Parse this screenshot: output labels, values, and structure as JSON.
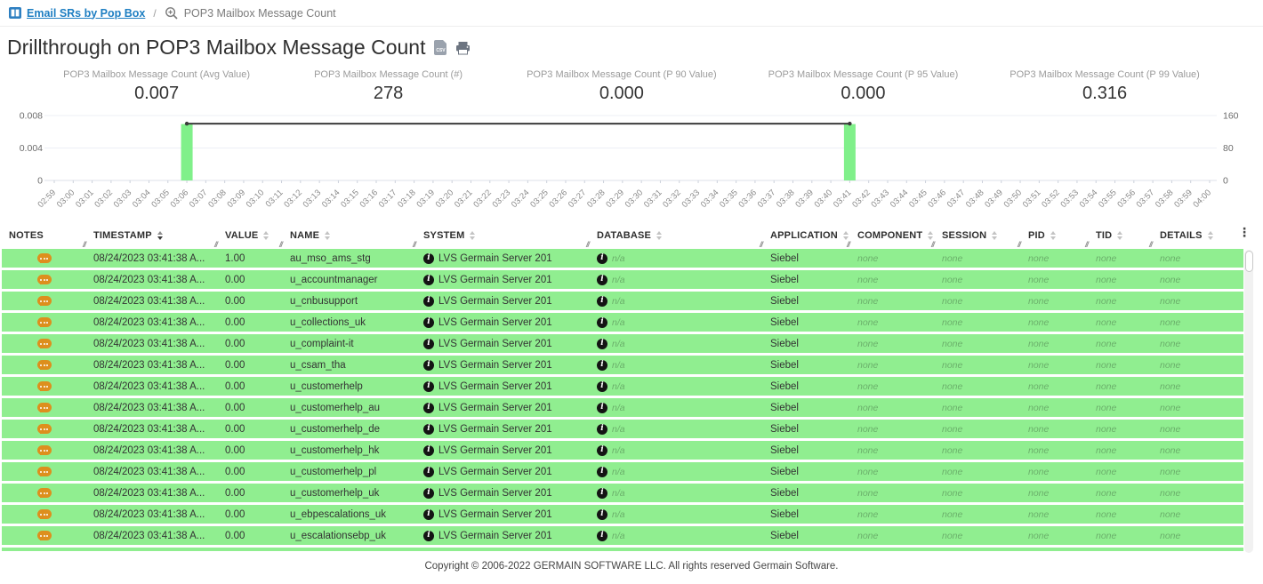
{
  "breadcrumb": {
    "link": "Email SRs by Pop Box",
    "separator": "/",
    "current": "POP3 Mailbox Message Count"
  },
  "page": {
    "title": "Drillthrough on POP3 Mailbox Message Count",
    "footer": "Copyright © 2006-2022 GERMAIN SOFTWARE LLC. All rights reserved Germain Software."
  },
  "icons": {
    "breadcrumb_app": "columns-icon",
    "breadcrumb_zoom": "zoom-in-icon",
    "csv_label": "CSV",
    "export": "csv-file-icon",
    "print": "printer-icon",
    "notes": "notes-bubble-icon",
    "info": "info-icon",
    "info_glyph": "i",
    "kebab_glyph": "⋮",
    "resize_glyph": "//"
  },
  "colors": {
    "row_green": "#90ee90",
    "bar_green": "#80f08a",
    "line_dark": "#3b3b3b",
    "link_blue": "#1d7ec2",
    "notes_orange": "#dd8f1d",
    "info_black": "#141414"
  },
  "stats": [
    {
      "label": "POP3 Mailbox Message Count (Avg Value)",
      "value": "0.007"
    },
    {
      "label": "POP3 Mailbox Message Count (#)",
      "value": "278"
    },
    {
      "label": "POP3 Mailbox Message Count (P 90 Value)",
      "value": "0.000"
    },
    {
      "label": "POP3 Mailbox Message Count (P 95 Value)",
      "value": "0.000"
    },
    {
      "label": "POP3 Mailbox Message Count (P 99 Value)",
      "value": "0.316"
    }
  ],
  "chart_data": {
    "type": "bar",
    "x": [
      "02:59",
      "03:00",
      "03:01",
      "03:02",
      "03:03",
      "03:04",
      "03:05",
      "03:06",
      "03:07",
      "03:08",
      "03:09",
      "03:10",
      "03:11",
      "03:12",
      "03:13",
      "03:14",
      "03:15",
      "03:16",
      "03:17",
      "03:18",
      "03:19",
      "03:20",
      "03:21",
      "03:22",
      "03:23",
      "03:24",
      "03:25",
      "03:26",
      "03:27",
      "03:28",
      "03:29",
      "03:30",
      "03:31",
      "03:32",
      "03:33",
      "03:34",
      "03:35",
      "03:36",
      "03:37",
      "03:38",
      "03:39",
      "03:40",
      "03:41",
      "03:42",
      "03:43",
      "03:44",
      "03:45",
      "03:46",
      "03:47",
      "03:48",
      "03:49",
      "03:50",
      "03:51",
      "03:52",
      "03:53",
      "03:54",
      "03:55",
      "03:56",
      "03:57",
      "03:58",
      "03:59",
      "04:00"
    ],
    "series": [
      {
        "name": "POP3 Mailbox Message Count (#)",
        "type": "bar",
        "axis": "right",
        "color": "#80f08a",
        "points": [
          {
            "x": "03:06",
            "y": 139
          },
          {
            "x": "03:41",
            "y": 139
          }
        ]
      },
      {
        "name": "POP3 Mailbox Message Count (Avg Value)",
        "type": "line",
        "axis": "left",
        "color": "#3b3b3b",
        "points": [
          {
            "x": "03:06",
            "y": 0.007
          },
          {
            "x": "03:41",
            "y": 0.007
          }
        ]
      }
    ],
    "left_axis": {
      "ticks": [
        "0.008",
        "0.004",
        "0"
      ],
      "max": 0.008,
      "min": 0
    },
    "right_axis": {
      "ticks": [
        "160",
        "80",
        "0"
      ],
      "max": 160,
      "min": 0
    },
    "grid": true,
    "legend": false
  },
  "table": {
    "columns": [
      {
        "key": "notes",
        "label": "NOTES",
        "sortable": false
      },
      {
        "key": "timestamp",
        "label": "TIMESTAMP",
        "sortable": true,
        "sorted": "desc"
      },
      {
        "key": "value",
        "label": "VALUE",
        "sortable": true
      },
      {
        "key": "name",
        "label": "NAME",
        "sortable": true
      },
      {
        "key": "system",
        "label": "SYSTEM",
        "sortable": true
      },
      {
        "key": "database",
        "label": "DATABASE",
        "sortable": true
      },
      {
        "key": "application",
        "label": "APPLICATION",
        "sortable": true
      },
      {
        "key": "component",
        "label": "COMPONENT",
        "sortable": true
      },
      {
        "key": "session",
        "label": "SESSION",
        "sortable": true
      },
      {
        "key": "pid",
        "label": "PID",
        "sortable": true
      },
      {
        "key": "tid",
        "label": "TID",
        "sortable": true
      },
      {
        "key": "details",
        "label": "DETAILS",
        "sortable": true
      }
    ],
    "rows": [
      {
        "timestamp": "08/24/2023 03:41:38 A...",
        "value": "1.00",
        "name": "au_mso_ams_stg",
        "system": "LVS Germain Server 201",
        "database": "n/a",
        "application": "Siebel",
        "component": "none",
        "session": "none",
        "pid": "none",
        "tid": "none",
        "details": "none"
      },
      {
        "timestamp": "08/24/2023 03:41:38 A...",
        "value": "0.00",
        "name": "u_accountmanager",
        "system": "LVS Germain Server 201",
        "database": "n/a",
        "application": "Siebel",
        "component": "none",
        "session": "none",
        "pid": "none",
        "tid": "none",
        "details": "none"
      },
      {
        "timestamp": "08/24/2023 03:41:38 A...",
        "value": "0.00",
        "name": "u_cnbusupport",
        "system": "LVS Germain Server 201",
        "database": "n/a",
        "application": "Siebel",
        "component": "none",
        "session": "none",
        "pid": "none",
        "tid": "none",
        "details": "none"
      },
      {
        "timestamp": "08/24/2023 03:41:38 A...",
        "value": "0.00",
        "name": "u_collections_uk",
        "system": "LVS Germain Server 201",
        "database": "n/a",
        "application": "Siebel",
        "component": "none",
        "session": "none",
        "pid": "none",
        "tid": "none",
        "details": "none"
      },
      {
        "timestamp": "08/24/2023 03:41:38 A...",
        "value": "0.00",
        "name": "u_complaint-it",
        "system": "LVS Germain Server 201",
        "database": "n/a",
        "application": "Siebel",
        "component": "none",
        "session": "none",
        "pid": "none",
        "tid": "none",
        "details": "none"
      },
      {
        "timestamp": "08/24/2023 03:41:38 A...",
        "value": "0.00",
        "name": "u_csam_tha",
        "system": "LVS Germain Server 201",
        "database": "n/a",
        "application": "Siebel",
        "component": "none",
        "session": "none",
        "pid": "none",
        "tid": "none",
        "details": "none"
      },
      {
        "timestamp": "08/24/2023 03:41:38 A...",
        "value": "0.00",
        "name": "u_customerhelp",
        "system": "LVS Germain Server 201",
        "database": "n/a",
        "application": "Siebel",
        "component": "none",
        "session": "none",
        "pid": "none",
        "tid": "none",
        "details": "none"
      },
      {
        "timestamp": "08/24/2023 03:41:38 A...",
        "value": "0.00",
        "name": "u_customerhelp_au",
        "system": "LVS Germain Server 201",
        "database": "n/a",
        "application": "Siebel",
        "component": "none",
        "session": "none",
        "pid": "none",
        "tid": "none",
        "details": "none"
      },
      {
        "timestamp": "08/24/2023 03:41:38 A...",
        "value": "0.00",
        "name": "u_customerhelp_de",
        "system": "LVS Germain Server 201",
        "database": "n/a",
        "application": "Siebel",
        "component": "none",
        "session": "none",
        "pid": "none",
        "tid": "none",
        "details": "none"
      },
      {
        "timestamp": "08/24/2023 03:41:38 A...",
        "value": "0.00",
        "name": "u_customerhelp_hk",
        "system": "LVS Germain Server 201",
        "database": "n/a",
        "application": "Siebel",
        "component": "none",
        "session": "none",
        "pid": "none",
        "tid": "none",
        "details": "none"
      },
      {
        "timestamp": "08/24/2023 03:41:38 A...",
        "value": "0.00",
        "name": "u_customerhelp_pl",
        "system": "LVS Germain Server 201",
        "database": "n/a",
        "application": "Siebel",
        "component": "none",
        "session": "none",
        "pid": "none",
        "tid": "none",
        "details": "none"
      },
      {
        "timestamp": "08/24/2023 03:41:38 A...",
        "value": "0.00",
        "name": "u_customerhelp_uk",
        "system": "LVS Germain Server 201",
        "database": "n/a",
        "application": "Siebel",
        "component": "none",
        "session": "none",
        "pid": "none",
        "tid": "none",
        "details": "none"
      },
      {
        "timestamp": "08/24/2023 03:41:38 A...",
        "value": "0.00",
        "name": "u_ebpescalations_uk",
        "system": "LVS Germain Server 201",
        "database": "n/a",
        "application": "Siebel",
        "component": "none",
        "session": "none",
        "pid": "none",
        "tid": "none",
        "details": "none"
      },
      {
        "timestamp": "08/24/2023 03:41:38 A...",
        "value": "0.00",
        "name": "u_escalationsebp_uk",
        "system": "LVS Germain Server 201",
        "database": "n/a",
        "application": "Siebel",
        "component": "none",
        "session": "none",
        "pid": "none",
        "tid": "none",
        "details": "none"
      }
    ]
  }
}
